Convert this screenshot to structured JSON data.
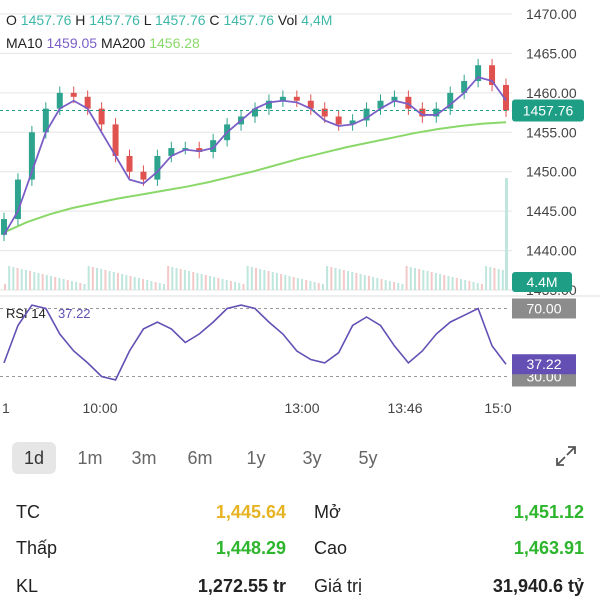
{
  "header": {
    "ohlc": [
      {
        "key": "O",
        "value": "1457.76"
      },
      {
        "key": "H",
        "value": "1457.76"
      },
      {
        "key": "L",
        "value": "1457.76"
      },
      {
        "key": "C",
        "value": "1457.76"
      },
      {
        "key": "Vol",
        "value": "4,4M"
      }
    ],
    "ma": [
      {
        "key": "MA10",
        "value": "1459.05",
        "color": "#7b5fc7"
      },
      {
        "key": "MA200",
        "value": "1456.28",
        "color": "#8bd86a"
      }
    ],
    "value_color": "#3fb8a8"
  },
  "price_axis": {
    "ticks": [
      "1470.00",
      "1465.00",
      "1460.00",
      "1455.00",
      "1450.00",
      "1445.00",
      "1440.00",
      "1435.00"
    ],
    "current": "1457.76"
  },
  "volume_label": "4.4M",
  "rsi": {
    "label": "RSI 14",
    "value": "37.22",
    "ticks": [
      "70.00",
      "30.00"
    ],
    "current": "37.22"
  },
  "time_axis": [
    "1",
    "10:00",
    "13:00",
    "13:46",
    "15:0"
  ],
  "timeframes": [
    "1d",
    "1m",
    "3m",
    "6m",
    "1y",
    "3y",
    "5y"
  ],
  "active_timeframe": "1d",
  "expand_icon": "expand-diagonal-icon",
  "stats": {
    "left": [
      {
        "label": "TC",
        "value": "1,445.64",
        "color": "#e6b422"
      },
      {
        "label": "Thấp",
        "value": "1,448.29",
        "color": "#2db52d"
      },
      {
        "label": "KL",
        "value": "1,272.55 tr",
        "color": "#222222"
      }
    ],
    "right": [
      {
        "label": "Mở",
        "value": "1,451.12",
        "color": "#2db52d"
      },
      {
        "label": "Cao",
        "value": "1,463.91",
        "color": "#2db52d"
      },
      {
        "label": "Giá trị",
        "value": "31,940.6 tỷ",
        "color": "#222222"
      }
    ]
  },
  "colors": {
    "up": "#2ea38e",
    "down": "#e0524f",
    "ma10": "#7b5fc7",
    "ma200": "#8bd86a",
    "rsi": "#6450b4",
    "badge": "#1f9e86",
    "grid": "#e5e5e5"
  },
  "chart_data": {
    "type": "line",
    "title": "",
    "price_range": [
      1435,
      1470
    ],
    "close": [
      1444,
      1449,
      1455,
      1458,
      1460,
      1459.5,
      1458,
      1456,
      1452,
      1450,
      1449,
      1452,
      1453,
      1453,
      1452.5,
      1454,
      1456,
      1457,
      1458,
      1459,
      1459.5,
      1459,
      1458,
      1457,
      1456,
      1456.5,
      1458,
      1459,
      1459.5,
      1458,
      1457,
      1458,
      1460,
      1461.5,
      1463.5,
      1461,
      1457.76
    ],
    "ma10": [
      1442,
      1445,
      1450,
      1455,
      1458,
      1459,
      1458,
      1455,
      1452,
      1449,
      1448.5,
      1450,
      1452,
      1452.8,
      1452.6,
      1453,
      1455,
      1456.5,
      1458,
      1458.8,
      1459,
      1458.8,
      1458,
      1456.5,
      1455.8,
      1456,
      1456.8,
      1458,
      1459,
      1458.6,
      1457.2,
      1457.2,
      1458.5,
      1460,
      1462,
      1461.5,
      1459.05
    ],
    "ma200": [
      1442.3,
      1443.6,
      1444.6,
      1445.4,
      1446.0,
      1446.6,
      1447.1,
      1447.6,
      1448.1,
      1448.7,
      1449.4,
      1450.1,
      1450.9,
      1451.7,
      1452.4,
      1453.1,
      1453.7,
      1454.3,
      1454.9,
      1455.4,
      1455.8,
      1456.1,
      1456.28
    ],
    "rsi": [
      38,
      60,
      72,
      70,
      55,
      45,
      38,
      30,
      28,
      45,
      58,
      62,
      58,
      50,
      55,
      62,
      70,
      72,
      70,
      62,
      55,
      45,
      40,
      38,
      44,
      60,
      65,
      60,
      48,
      38,
      45,
      55,
      62,
      66,
      70,
      48,
      37.22
    ],
    "rsi_range": [
      25,
      75
    ]
  }
}
